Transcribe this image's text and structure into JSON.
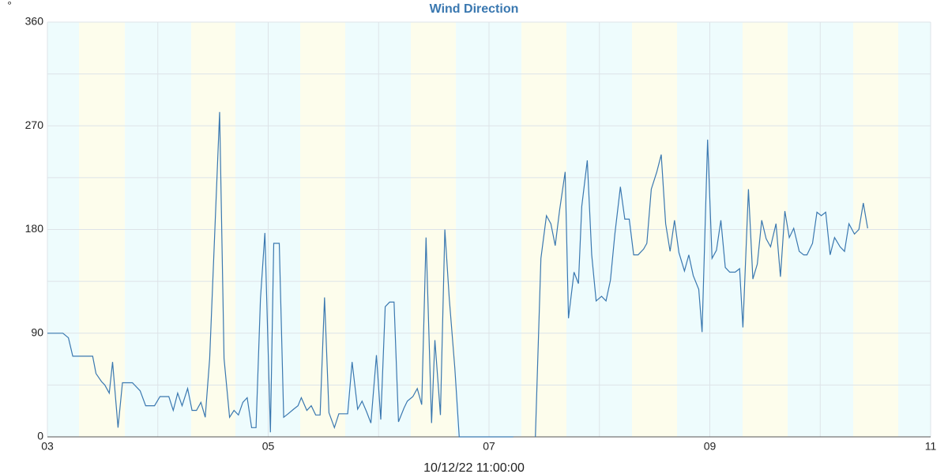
{
  "chart_data": {
    "type": "line",
    "title": "Wind Direction",
    "ylabel": "°",
    "xlabel": "10/12/22 11:00:00",
    "xlim": [
      3,
      11
    ],
    "ylim": [
      0,
      360
    ],
    "xticks": [
      {
        "value": 3,
        "label": "03"
      },
      {
        "value": 5,
        "label": "05"
      },
      {
        "value": 7,
        "label": "07"
      },
      {
        "value": 9,
        "label": "09"
      },
      {
        "value": 11,
        "label": "11"
      }
    ],
    "yticks": [
      0,
      90,
      180,
      270,
      360
    ],
    "grid": true,
    "series": [
      {
        "name": "Wind Direction",
        "color": "#3a78b0",
        "x": [
          3.0,
          3.14,
          3.19,
          3.23,
          3.41,
          3.44,
          3.49,
          3.52,
          3.56,
          3.59,
          3.64,
          3.68,
          3.77,
          3.84,
          3.89,
          3.97,
          4.02,
          4.1,
          4.14,
          4.18,
          4.22,
          4.27,
          4.31,
          4.35,
          4.39,
          4.43,
          4.47,
          4.56,
          4.6,
          4.65,
          4.69,
          4.73,
          4.77,
          4.81,
          4.85,
          4.89,
          4.93,
          4.97,
          5.02,
          5.05,
          5.1,
          5.14,
          5.18,
          5.23,
          5.27,
          5.3,
          5.35,
          5.39,
          5.43,
          5.47,
          5.51,
          5.55,
          5.6,
          5.64,
          5.72,
          5.76,
          5.81,
          5.85,
          5.89,
          5.93,
          5.98,
          6.02,
          6.06,
          6.1,
          6.14,
          6.18,
          6.23,
          6.26,
          6.31,
          6.35,
          6.39,
          6.43,
          6.48,
          6.51,
          6.56,
          6.6,
          6.64,
          6.69,
          6.73,
          7.22,
          7.32,
          7.42,
          7.47,
          7.52,
          7.56,
          7.6,
          7.64,
          7.69,
          7.72,
          7.77,
          7.81,
          7.84,
          7.89,
          7.93,
          7.97,
          8.02,
          8.06,
          8.1,
          8.14,
          8.19,
          8.23,
          8.27,
          8.31,
          8.35,
          8.4,
          8.43,
          8.47,
          8.52,
          8.56,
          8.6,
          8.64,
          8.68,
          8.72,
          8.77,
          8.81,
          8.85,
          8.9,
          8.93,
          8.98,
          9.02,
          9.06,
          9.1,
          9.14,
          9.18,
          9.23,
          9.27,
          9.3,
          9.35,
          9.39,
          9.43,
          9.47,
          9.51,
          9.55,
          9.6,
          9.64,
          9.68,
          9.72,
          9.76,
          9.81,
          9.85,
          9.88,
          9.93,
          9.97,
          10.01,
          10.05,
          10.09,
          10.13,
          10.18,
          10.22,
          10.26,
          10.31,
          10.35,
          10.39,
          10.43
        ],
        "values": [
          90,
          90,
          86,
          70,
          70,
          55,
          48,
          45,
          38,
          65,
          8,
          47,
          47,
          40,
          27,
          27,
          35,
          35,
          23,
          38,
          27,
          42,
          23,
          23,
          30,
          17,
          68,
          282,
          68,
          17,
          23,
          19,
          30,
          34,
          8,
          8,
          120,
          177,
          4,
          168,
          168,
          17,
          20,
          24,
          27,
          34,
          23,
          27,
          19,
          19,
          121,
          21,
          8,
          20,
          20,
          65,
          24,
          31,
          22,
          12,
          71,
          15,
          113,
          117,
          117,
          13,
          25,
          31,
          35,
          42,
          28,
          173,
          12,
          84,
          19,
          180,
          120,
          60,
          0,
          0,
          null,
          0,
          155,
          192,
          185,
          166,
          197,
          230,
          103,
          143,
          133,
          200,
          240,
          158,
          118,
          122,
          118,
          136,
          176,
          217,
          189,
          189,
          158,
          158,
          163,
          168,
          215,
          230,
          245,
          185,
          161,
          188,
          160,
          144,
          158,
          140,
          128,
          91,
          258,
          155,
          162,
          188,
          147,
          143,
          143,
          146,
          95,
          215,
          137,
          150,
          188,
          172,
          165,
          185,
          139,
          196,
          173,
          181,
          161,
          158,
          158,
          168,
          195,
          192,
          195,
          158,
          173,
          165,
          161,
          185,
          176,
          180,
          203,
          181
        ]
      }
    ]
  }
}
